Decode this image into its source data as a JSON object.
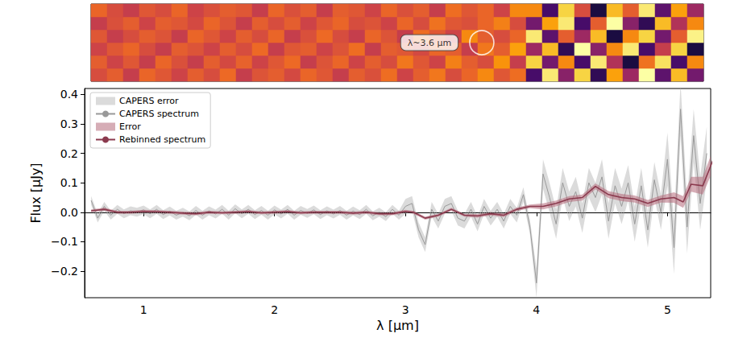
{
  "chart_data": {
    "type": "line",
    "xlabel": "λ [µm]",
    "ylabel": "Flux [µJy]",
    "xlim": [
      0.55,
      5.33
    ],
    "xticks": [
      1,
      2,
      3,
      4,
      5
    ],
    "ylim": [
      -0.29,
      0.42
    ],
    "yticks": [
      {
        "value": -0.2,
        "label": "−0.2"
      },
      {
        "value": -0.1,
        "label": "−0.1"
      },
      {
        "value": 0,
        "label": "0.0"
      },
      0.1,
      0.2,
      0.3,
      0.4
    ],
    "legend": "upper left",
    "grid": false,
    "hline": {
      "y": 0,
      "line_style": "dotted"
    },
    "annotation": {
      "text": "λ~3.6 µm",
      "x": 3.6
    },
    "series": [
      {
        "name": "CAPERS spectrum",
        "type": "line",
        "color": "#999999",
        "x": [
          0.6,
          0.65,
          0.7,
          0.75,
          0.8,
          0.85,
          0.9,
          0.95,
          1.0,
          1.05,
          1.1,
          1.15,
          1.2,
          1.25,
          1.3,
          1.35,
          1.4,
          1.45,
          1.5,
          1.55,
          1.6,
          1.65,
          1.7,
          1.75,
          1.8,
          1.85,
          1.9,
          1.95,
          2.0,
          2.05,
          2.1,
          2.15,
          2.2,
          2.25,
          2.3,
          2.35,
          2.4,
          2.45,
          2.5,
          2.55,
          2.6,
          2.65,
          2.7,
          2.75,
          2.8,
          2.85,
          2.9,
          2.95,
          3.0,
          3.05,
          3.1,
          3.15,
          3.2,
          3.25,
          3.3,
          3.35,
          3.4,
          3.45,
          3.5,
          3.55,
          3.6,
          3.65,
          3.7,
          3.75,
          3.8,
          3.85,
          3.9,
          3.95,
          4.0,
          4.05,
          4.1,
          4.15,
          4.2,
          4.25,
          4.3,
          4.35,
          4.4,
          4.45,
          4.5,
          4.55,
          4.6,
          4.65,
          4.7,
          4.75,
          4.8,
          4.85,
          4.9,
          4.95,
          5.0,
          5.05,
          5.1,
          5.15,
          5.2,
          5.25,
          5.3
        ],
        "values": [
          0.04,
          -0.02,
          0.02,
          -0.01,
          0.01,
          -0.005,
          0.005,
          0,
          0.008,
          -0.005,
          0.01,
          -0.008,
          0.004,
          -0.01,
          0,
          -0.012,
          0.006,
          -0.01,
          0.005,
          -0.006,
          0.01,
          -0.01,
          0.012,
          -0.005,
          0.01,
          -0.008,
          0.006,
          -0.01,
          0.008,
          -0.006,
          0.01,
          -0.01,
          0.006,
          -0.004,
          0.008,
          -0.008,
          0.005,
          -0.006,
          0.006,
          -0.01,
          0.004,
          -0.008,
          0.01,
          -0.012,
          0,
          -0.015,
          0.01,
          -0.01,
          0.02,
          0.03,
          -0.06,
          -0.11,
          0.01,
          -0.03,
          0.02,
          0.03,
          -0.02,
          -0.03,
          0.01,
          -0.04,
          0.02,
          -0.02,
          0.01,
          -0.03,
          0.02,
          -0.01,
          0.06,
          -0.05,
          -0.24,
          0.13,
          0.05,
          -0.04,
          0.1,
          0.02,
          0.07,
          -0.02,
          0.1,
          0.05,
          0.12,
          -0.03,
          0.09,
          0.02,
          0.1,
          -0.04,
          0.09,
          -0.06,
          0.11,
          0,
          0.18,
          -0.12,
          0.35,
          -0.05,
          0.26,
          0.03,
          0.2
        ],
        "error": {
          "name": "CAPERS error",
          "color": "#bdbdbd",
          "values": [
            0.015,
            0.015,
            0.015,
            0.015,
            0.015,
            0.015,
            0.015,
            0.015,
            0.015,
            0.015,
            0.015,
            0.015,
            0.015,
            0.015,
            0.015,
            0.015,
            0.015,
            0.015,
            0.015,
            0.015,
            0.015,
            0.015,
            0.015,
            0.015,
            0.015,
            0.015,
            0.015,
            0.015,
            0.015,
            0.015,
            0.015,
            0.015,
            0.015,
            0.015,
            0.015,
            0.015,
            0.015,
            0.015,
            0.015,
            0.015,
            0.015,
            0.015,
            0.015,
            0.015,
            0.015,
            0.015,
            0.015,
            0.015,
            0.025,
            0.025,
            0.025,
            0.025,
            0.025,
            0.025,
            0.025,
            0.025,
            0.025,
            0.025,
            0.025,
            0.025,
            0.025,
            0.025,
            0.025,
            0.025,
            0.025,
            0.025,
            0.025,
            0.025,
            0.05,
            0.05,
            0.05,
            0.05,
            0.05,
            0.05,
            0.05,
            0.05,
            0.05,
            0.05,
            0.06,
            0.06,
            0.06,
            0.06,
            0.06,
            0.06,
            0.06,
            0.06,
            0.06,
            0.06,
            0.09,
            0.09,
            0.09,
            0.09,
            0.09,
            0.09,
            0.09
          ]
        }
      },
      {
        "name": "Rebinned spectrum",
        "type": "line",
        "color": "#8b3a4e",
        "x": [
          0.6,
          0.7,
          0.8,
          0.9,
          1.0,
          1.1,
          1.2,
          1.3,
          1.4,
          1.5,
          1.6,
          1.7,
          1.8,
          1.9,
          2.0,
          2.1,
          2.2,
          2.3,
          2.4,
          2.5,
          2.6,
          2.7,
          2.8,
          2.9,
          3.0,
          3.06,
          3.15,
          3.25,
          3.35,
          3.45,
          3.55,
          3.65,
          3.75,
          3.85,
          3.95,
          4.05,
          4.15,
          4.25,
          4.35,
          4.45,
          4.55,
          4.65,
          4.75,
          4.85,
          4.95,
          5.05,
          5.12,
          5.18,
          5.27,
          5.35
        ],
        "values": [
          0.005,
          0.01,
          0,
          0,
          0.003,
          0.002,
          0,
          -0.003,
          -0.005,
          0,
          -0.002,
          0,
          0.002,
          -0.002,
          0,
          0.002,
          -0.002,
          0,
          0,
          0,
          -0.003,
          0,
          -0.005,
          -0.005,
          0.003,
          0,
          -0.02,
          -0.01,
          0.01,
          -0.01,
          -0.012,
          -0.005,
          -0.01,
          0.01,
          0.02,
          0.02,
          0.03,
          0.045,
          0.05,
          0.088,
          0.06,
          0.05,
          0.045,
          0.03,
          0.045,
          0.05,
          0.035,
          0.095,
          0.09,
          0.18
        ],
        "error": {
          "name": "Error",
          "color": "#b5697a",
          "values": [
            0.005,
            0.005,
            0.005,
            0.005,
            0.005,
            0.005,
            0.005,
            0.005,
            0.005,
            0.005,
            0.005,
            0.005,
            0.005,
            0.005,
            0.005,
            0.005,
            0.005,
            0.005,
            0.005,
            0.005,
            0.005,
            0.005,
            0.005,
            0.005,
            0.005,
            0.005,
            0.005,
            0.005,
            0.005,
            0.005,
            0.006,
            0.006,
            0.006,
            0.006,
            0.006,
            0.01,
            0.01,
            0.01,
            0.01,
            0.01,
            0.012,
            0.012,
            0.012,
            0.012,
            0.012,
            0.018,
            0.02,
            0.025,
            0.03,
            0.035
          ]
        }
      }
    ],
    "image": {
      "cells": [
        [
          0.55,
          0.6,
          0.5,
          0.62,
          0.58,
          0.52,
          0.6,
          0.55,
          0.63,
          0.5,
          0.57,
          0.6,
          0.54,
          0.62,
          0.58,
          0.5,
          0.6,
          0.56,
          0.64,
          0.52,
          0.6,
          0.66,
          0.55,
          0.62,
          0.7,
          0.58,
          0.64,
          0.2,
          0.9,
          0.35,
          0.85,
          0.15,
          0.75,
          0.4,
          0.95,
          0.25,
          0.8,
          0.3
        ],
        [
          0.6,
          0.52,
          0.58,
          0.5,
          0.62,
          0.56,
          0.5,
          0.6,
          0.54,
          0.61,
          0.52,
          0.58,
          0.63,
          0.5,
          0.57,
          0.62,
          0.52,
          0.6,
          0.55,
          0.66,
          0.58,
          0.52,
          0.68,
          0.6,
          0.55,
          0.72,
          0.5,
          0.85,
          0.3,
          0.7,
          0.2,
          0.9,
          0.45,
          0.1,
          0.65,
          0.88,
          0.2,
          0.7
        ],
        [
          0.52,
          0.58,
          0.62,
          0.55,
          0.5,
          0.6,
          0.57,
          0.52,
          0.6,
          0.55,
          0.63,
          0.5,
          0.58,
          0.6,
          0.52,
          0.57,
          0.64,
          0.5,
          0.6,
          0.58,
          0.54,
          0.62,
          0.6,
          0.5,
          0.66,
          0.6,
          0.75,
          0.4,
          0.8,
          0.15,
          0.95,
          0.35,
          0.7,
          0.9,
          0.2,
          0.5,
          0.85,
          0.1
        ],
        [
          0.58,
          0.5,
          0.55,
          0.6,
          0.57,
          0.5,
          0.62,
          0.58,
          0.52,
          0.6,
          0.55,
          0.62,
          0.5,
          0.56,
          0.63,
          0.55,
          0.5,
          0.62,
          0.57,
          0.5,
          0.64,
          0.58,
          0.52,
          0.7,
          0.6,
          0.55,
          0.62,
          0.9,
          0.25,
          0.6,
          0.4,
          0.8,
          0.1,
          0.7,
          0.85,
          0.3,
          0.6,
          0.92
        ],
        [
          0.5,
          0.56,
          0.6,
          0.52,
          0.6,
          0.58,
          0.54,
          0.62,
          0.57,
          0.5,
          0.6,
          0.55,
          0.6,
          0.52,
          0.58,
          0.62,
          0.55,
          0.57,
          0.52,
          0.62,
          0.55,
          0.65,
          0.58,
          0.56,
          0.62,
          0.68,
          0.55,
          0.3,
          0.75,
          0.9,
          0.2,
          0.6,
          0.95,
          0.35,
          0.15,
          0.8,
          0.45,
          0.7
        ],
        [
          0.62,
          0.55,
          0.5,
          0.58,
          0.55,
          0.62,
          0.52,
          0.56,
          0.6,
          0.58,
          0.5,
          0.62,
          0.56,
          0.6,
          0.5,
          0.6,
          0.58,
          0.52,
          0.62,
          0.56,
          0.6,
          0.5,
          0.64,
          0.58,
          0.62,
          0.52,
          0.7,
          0.7,
          0.2,
          0.85,
          0.55,
          0.1,
          0.8,
          0.6,
          0.9,
          0.25,
          0.75,
          0.4
        ]
      ]
    }
  }
}
